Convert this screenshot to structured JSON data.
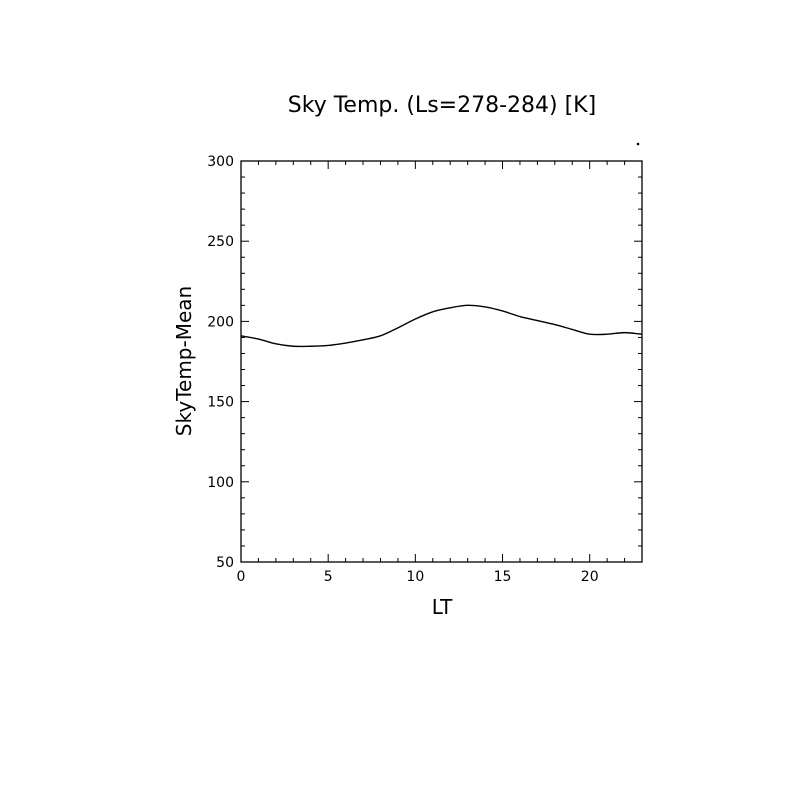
{
  "chart_data": {
    "type": "line",
    "title": "Sky Temp. (Ls=278-284) [K]",
    "xlabel": "LT",
    "ylabel": "SkyTemp-Mean",
    "xlim": [
      0,
      23
    ],
    "ylim": [
      50,
      300
    ],
    "x_ticks": [
      0,
      5,
      10,
      15,
      20
    ],
    "x_tick_labels": [
      "0",
      "5",
      "10",
      "15",
      "20"
    ],
    "y_ticks": [
      50,
      100,
      150,
      200,
      250,
      300
    ],
    "y_tick_labels": [
      "50",
      "100",
      "150",
      "200",
      "250",
      "300"
    ],
    "grid": false,
    "series": [
      {
        "color": "#000000",
        "x": [
          0,
          1,
          2,
          3,
          4,
          5,
          6,
          7,
          8,
          9,
          10,
          11,
          12,
          13,
          14,
          15,
          16,
          17,
          18,
          19,
          20,
          21,
          22,
          23
        ],
        "y": [
          191,
          189,
          186,
          184.5,
          184.5,
          185,
          186.5,
          188.5,
          191,
          196,
          201.5,
          206,
          208.5,
          210,
          209,
          206.5,
          203,
          200.5,
          198,
          195,
          192,
          192,
          193,
          192
        ]
      }
    ]
  }
}
